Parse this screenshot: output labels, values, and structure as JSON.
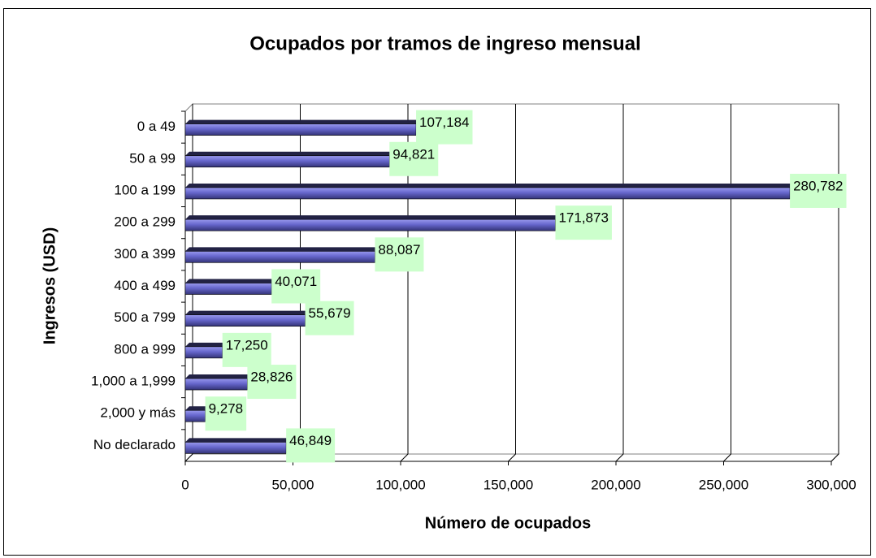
{
  "chart_data": {
    "type": "bar",
    "orientation": "horizontal",
    "title": "Ocupados por tramos de ingreso mensual",
    "x_label": "Número de ocupados",
    "y_label": "Ingresos (USD)",
    "categories": [
      "0 a 49",
      "50 a 99",
      "100 a 199",
      "200 a 299",
      "300 a 399",
      "400 a 499",
      "500 a 799",
      "800 a 999",
      "1,000 a 1,999",
      "2,000 y más",
      "No declarado"
    ],
    "values": [
      107184,
      94821,
      280782,
      171873,
      88087,
      40071,
      55679,
      17250,
      28826,
      9278,
      46849
    ],
    "value_labels": [
      "107,184",
      "94,821",
      "280,782",
      "171,873",
      "88,087",
      "40,071",
      "55,679",
      "17,250",
      "28,826",
      "9,278",
      "46,849"
    ],
    "color": "#6666cc",
    "label_background": "#ccffcc",
    "xlim": [
      0,
      300000
    ],
    "xticks": [
      0,
      {
        "value": 50000,
        "label": "50,000"
      },
      {
        "value": 100000,
        "label": "100,000"
      },
      {
        "value": 150000,
        "label": "150,000"
      },
      {
        "value": 200000,
        "label": "200,000"
      },
      {
        "value": 250000,
        "label": "250,000"
      },
      {
        "value": 300000,
        "label": "300,000"
      }
    ],
    "grid": true
  }
}
